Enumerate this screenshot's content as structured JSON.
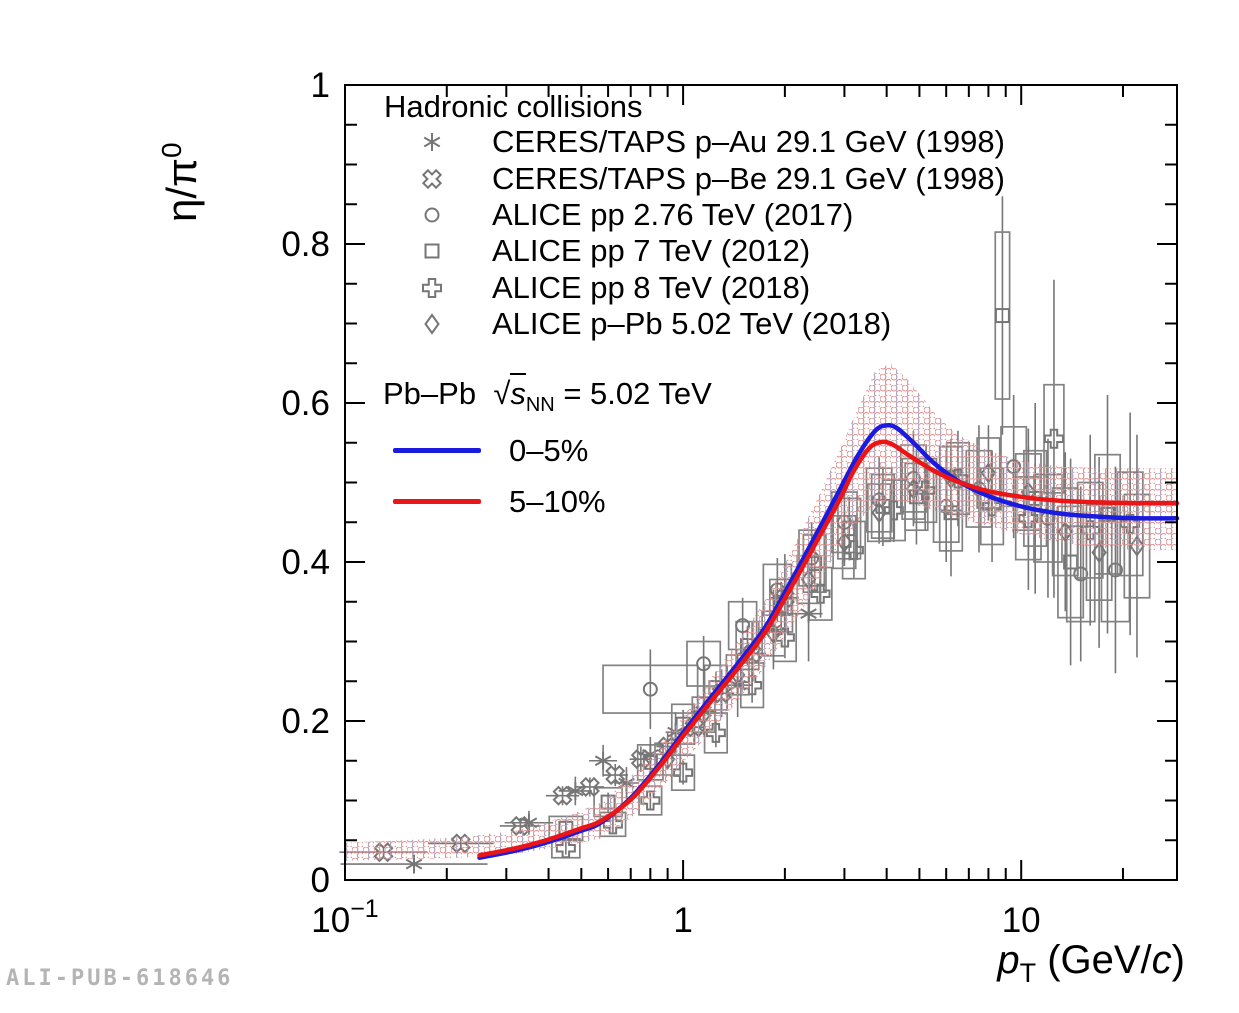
{
  "watermark": "ALI-PUB-618646",
  "colors": {
    "curve_0_5": "#1b1be0",
    "curve_5_10": "#ea1517",
    "marker_grey": "#767676",
    "box_grey": "#828282",
    "band_hatch_red": "#e09090",
    "band_hatch_blue": "#9aa2c4",
    "watermark_grey": "#b4b4b4"
  },
  "axes": {
    "x": {
      "title": {
        "p": "p",
        "sub": "T",
        "unit_prefix": " (GeV/",
        "unit_c": "c",
        "unit_suffix": ")"
      },
      "scale": "log",
      "range": [
        0.1,
        28.9
      ],
      "major_ticks": [
        {
          "v": 0.1,
          "base": "10",
          "exp": "−1"
        },
        {
          "v": 1,
          "base": "1",
          "exp": ""
        },
        {
          "v": 10,
          "base": "10",
          "exp": ""
        }
      ]
    },
    "y": {
      "title": {
        "base": "η/π",
        "sup": "0"
      },
      "scale": "linear",
      "range": [
        0,
        1
      ],
      "major_ticks": [
        {
          "v": 0,
          "label": "0"
        },
        {
          "v": 0.2,
          "label": "0.2"
        },
        {
          "v": 0.4,
          "label": "0.4"
        },
        {
          "v": 0.6,
          "label": "0.6"
        },
        {
          "v": 0.8,
          "label": "0.8"
        },
        {
          "v": 1,
          "label": "1"
        }
      ],
      "minor_step": 0.05
    }
  },
  "legend_hadronic": {
    "title": "Hadronic collisions",
    "entries": [
      {
        "marker": "asterisk",
        "label": "CERES/TAPS p–Au 29.1 GeV (1998)"
      },
      {
        "marker": "xcross",
        "label": "CERES/TAPS p–Be 29.1 GeV (1998)"
      },
      {
        "marker": "circle",
        "label": "ALICE pp 2.76 TeV (2017)"
      },
      {
        "marker": "square",
        "label": "ALICE pp 7 TeV (2012)"
      },
      {
        "marker": "pluscross",
        "label": "ALICE pp 8 TeV (2018)"
      },
      {
        "marker": "diamond",
        "label": "ALICE p–Pb 5.02 TeV (2018)"
      }
    ]
  },
  "legend_model": {
    "system": "Pb–Pb",
    "sqrt_symbol": "√",
    "sqrt_arg": "s",
    "subscript": "NN",
    "suffix": " = 5.02 TeV",
    "entries": [
      {
        "color": "#1b1be0",
        "label": "0–5%"
      },
      {
        "color": "#ea1517",
        "label": "5–10%"
      }
    ]
  },
  "chart_data": {
    "type": "scatter",
    "title": "",
    "xlabel": "pT (GeV/c)",
    "ylabel": "eta/pi0",
    "xlim": [
      0.1,
      28.9
    ],
    "ylim": [
      0,
      1
    ],
    "x_scale": "log",
    "grid": false,
    "legend_position": "upper-left",
    "point_format": [
      "pT",
      "value",
      "stat_err",
      "xbar_factor",
      "box_x_factor",
      "box_y_half"
    ],
    "data_series": [
      {
        "name": "ALICE pp 7 TeV (2012)",
        "marker": "square",
        "points": [
          [
            0.45,
            0.065,
            0.01,
            null,
            1.12,
            0.015
          ],
          [
            0.6,
            0.098,
            0.012,
            null,
            1.1,
            0.018
          ],
          [
            0.8,
            0.148,
            0.015,
            null,
            1.09,
            0.022
          ],
          [
            1.0,
            0.196,
            0.018,
            null,
            1.08,
            0.025
          ],
          [
            1.25,
            0.242,
            0.02,
            null,
            1.08,
            0.028
          ],
          [
            1.55,
            0.295,
            0.025,
            null,
            1.08,
            0.03
          ],
          [
            1.95,
            0.345,
            0.03,
            null,
            1.08,
            0.033
          ],
          [
            2.45,
            0.398,
            0.035,
            null,
            1.08,
            0.036
          ],
          [
            3.1,
            0.442,
            0.04,
            null,
            1.08,
            0.038
          ],
          [
            3.9,
            0.47,
            0.05,
            null,
            1.08,
            0.04
          ],
          [
            4.9,
            0.482,
            0.06,
            null,
            1.08,
            0.042
          ],
          [
            6.2,
            0.462,
            0.08,
            null,
            1.08,
            0.048
          ],
          [
            8.8,
            0.71,
            0.15,
            null,
            1.05,
            0.105
          ],
          [
            11.0,
            0.48,
            0.12,
            null,
            1.08,
            0.06
          ],
          [
            14.0,
            0.4,
            0.13,
            null,
            1.09,
            0.07
          ],
          [
            18.0,
            0.46,
            0.15,
            null,
            1.09,
            0.075
          ]
        ]
      },
      {
        "name": "ALICE pp 2.76 TeV (2017)",
        "marker": "circle",
        "points": [
          [
            0.8,
            0.24,
            0.05,
            null,
            1.38,
            0.03
          ],
          [
            1.15,
            0.272,
            0.035,
            null,
            1.12,
            0.028
          ],
          [
            1.5,
            0.32,
            0.035,
            null,
            1.1,
            0.03
          ],
          [
            1.9,
            0.365,
            0.04,
            null,
            1.1,
            0.032
          ],
          [
            2.4,
            0.405,
            0.045,
            null,
            1.09,
            0.035
          ],
          [
            3.0,
            0.45,
            0.05,
            null,
            1.09,
            0.038
          ],
          [
            3.8,
            0.478,
            0.055,
            null,
            1.09,
            0.04
          ],
          [
            4.8,
            0.505,
            0.06,
            null,
            1.09,
            0.042
          ],
          [
            6.0,
            0.47,
            0.07,
            null,
            1.09,
            0.045
          ],
          [
            7.5,
            0.492,
            0.08,
            null,
            1.09,
            0.048
          ],
          [
            9.5,
            0.52,
            0.09,
            null,
            1.09,
            0.05
          ],
          [
            12.0,
            0.455,
            0.1,
            null,
            1.1,
            0.055
          ],
          [
            15.0,
            0.385,
            0.11,
            null,
            1.1,
            0.06
          ],
          [
            19.0,
            0.39,
            0.13,
            null,
            1.1,
            0.065
          ]
        ]
      },
      {
        "name": "ALICE pp 8 TeV (2018)",
        "marker": "pluscross",
        "points": [
          [
            0.45,
            0.04,
            0.008,
            null,
            1.1,
            0.012
          ],
          [
            0.62,
            0.07,
            0.01,
            null,
            1.09,
            0.015
          ],
          [
            0.8,
            0.1,
            0.012,
            null,
            1.08,
            0.018
          ],
          [
            1.0,
            0.135,
            0.015,
            null,
            1.08,
            0.022
          ],
          [
            1.25,
            0.185,
            0.018,
            null,
            1.08,
            0.025
          ],
          [
            1.6,
            0.245,
            0.022,
            null,
            1.08,
            0.028
          ],
          [
            2.0,
            0.305,
            0.026,
            null,
            1.08,
            0.03
          ],
          [
            2.55,
            0.36,
            0.03,
            null,
            1.08,
            0.033
          ],
          [
            3.2,
            0.415,
            0.035,
            null,
            1.08,
            0.036
          ],
          [
            4.2,
            0.465,
            0.04,
            null,
            1.08,
            0.038
          ],
          [
            5.2,
            0.49,
            0.05,
            null,
            1.08,
            0.04
          ],
          [
            6.5,
            0.505,
            0.06,
            null,
            1.08,
            0.045
          ],
          [
            8.2,
            0.47,
            0.07,
            null,
            1.08,
            0.048
          ],
          [
            10.5,
            0.455,
            0.09,
            null,
            1.09,
            0.052
          ],
          [
            12.5,
            0.555,
            0.2,
            null,
            1.07,
            0.068
          ],
          [
            16.0,
            0.44,
            0.12,
            null,
            1.09,
            0.06
          ],
          [
            21.0,
            0.448,
            0.14,
            null,
            1.09,
            0.065
          ]
        ]
      },
      {
        "name": "ALICE p–Pb 5.02 TeV (2018)",
        "marker": "diamond",
        "points": [
          [
            0.9,
            0.152,
            0.012,
            null,
            1.09,
            0.02
          ],
          [
            1.15,
            0.208,
            0.015,
            null,
            1.08,
            0.022
          ],
          [
            1.45,
            0.258,
            0.018,
            null,
            1.08,
            0.025
          ],
          [
            1.85,
            0.31,
            0.022,
            null,
            1.08,
            0.028
          ],
          [
            2.35,
            0.378,
            0.026,
            null,
            1.08,
            0.03
          ],
          [
            3.0,
            0.425,
            0.03,
            null,
            1.08,
            0.033
          ],
          [
            3.8,
            0.462,
            0.035,
            null,
            1.08,
            0.036
          ],
          [
            4.8,
            0.492,
            0.04,
            null,
            1.08,
            0.038
          ],
          [
            6.2,
            0.505,
            0.05,
            null,
            1.08,
            0.04
          ],
          [
            8.0,
            0.512,
            0.06,
            null,
            1.08,
            0.044
          ],
          [
            10.5,
            0.488,
            0.08,
            null,
            1.09,
            0.048
          ],
          [
            13.5,
            0.438,
            0.1,
            null,
            1.09,
            0.055
          ],
          [
            17.0,
            0.412,
            0.12,
            null,
            1.09,
            0.06
          ],
          [
            22.0,
            0.42,
            0.14,
            null,
            1.09,
            0.065
          ]
        ]
      },
      {
        "name": "CERES/TAPS p–Au 29.1 GeV (1998)",
        "marker": "asterisk",
        "points": [
          [
            0.16,
            0.02,
            0.012,
            1.65,
            null,
            null
          ],
          [
            0.35,
            0.072,
            0.015,
            1.18,
            null,
            null
          ],
          [
            0.48,
            0.112,
            0.018,
            1.12,
            null,
            null
          ],
          [
            0.58,
            0.15,
            0.02,
            1.1,
            null,
            null
          ],
          [
            0.68,
            0.122,
            0.02,
            1.09,
            null,
            null
          ],
          [
            0.8,
            0.158,
            0.022,
            1.08,
            null,
            null
          ],
          [
            0.95,
            0.186,
            0.025,
            1.07,
            null,
            null
          ],
          [
            1.15,
            0.212,
            0.03,
            1.09,
            null,
            null
          ],
          [
            1.45,
            0.245,
            0.04,
            1.1,
            null,
            null
          ],
          [
            1.85,
            0.315,
            0.05,
            1.1,
            null,
            null
          ],
          [
            2.35,
            0.335,
            0.06,
            1.1,
            null,
            null
          ]
        ]
      },
      {
        "name": "CERES/TAPS p–Be 29.1 GeV (1998)",
        "marker": "xcross",
        "points": [
          [
            0.13,
            0.035,
            0.008,
            1.35,
            null,
            null
          ],
          [
            0.22,
            0.046,
            0.008,
            1.25,
            null,
            null
          ],
          [
            0.33,
            0.068,
            0.01,
            1.15,
            null,
            null
          ],
          [
            0.44,
            0.106,
            0.012,
            1.12,
            null,
            null
          ],
          [
            0.53,
            0.117,
            0.012,
            1.1,
            null,
            null
          ],
          [
            0.63,
            0.132,
            0.014,
            1.09,
            null,
            null
          ],
          [
            0.75,
            0.152,
            0.016,
            1.08,
            null,
            null
          ],
          [
            0.9,
            0.168,
            0.018,
            1.08,
            null,
            null
          ],
          [
            1.08,
            0.192,
            0.022,
            1.08,
            null,
            null
          ],
          [
            1.3,
            0.235,
            0.03,
            1.09,
            null,
            null
          ],
          [
            1.6,
            0.285,
            0.04,
            1.1,
            null,
            null
          ],
          [
            2.0,
            0.355,
            0.055,
            1.1,
            null,
            null
          ]
        ]
      }
    ],
    "model_curves": [
      {
        "name": "Pb–Pb 0–5%",
        "color": "#1b1be0",
        "points": [
          [
            0.25,
            0.028
          ],
          [
            0.32,
            0.037
          ],
          [
            0.4,
            0.048
          ],
          [
            0.5,
            0.062
          ],
          [
            0.57,
            0.072
          ],
          [
            0.7,
            0.103
          ],
          [
            0.85,
            0.145
          ],
          [
            1.0,
            0.185
          ],
          [
            1.2,
            0.228
          ],
          [
            1.45,
            0.272
          ],
          [
            1.75,
            0.318
          ],
          [
            2.1,
            0.378
          ],
          [
            2.5,
            0.438
          ],
          [
            2.9,
            0.49
          ],
          [
            3.3,
            0.535
          ],
          [
            3.7,
            0.565
          ],
          [
            4.0,
            0.572
          ],
          [
            4.3,
            0.568
          ],
          [
            4.8,
            0.55
          ],
          [
            5.5,
            0.525
          ],
          [
            6.5,
            0.502
          ],
          [
            8.0,
            0.483
          ],
          [
            10.0,
            0.47
          ],
          [
            13.0,
            0.461
          ],
          [
            17.0,
            0.457
          ],
          [
            22.0,
            0.455
          ],
          [
            28.9,
            0.455
          ]
        ]
      },
      {
        "name": "Pb–Pb 5–10%",
        "color": "#ea1517",
        "points": [
          [
            0.25,
            0.031
          ],
          [
            0.32,
            0.04
          ],
          [
            0.4,
            0.051
          ],
          [
            0.5,
            0.065
          ],
          [
            0.57,
            0.074
          ],
          [
            0.7,
            0.101
          ],
          [
            0.85,
            0.142
          ],
          [
            1.0,
            0.181
          ],
          [
            1.2,
            0.223
          ],
          [
            1.45,
            0.266
          ],
          [
            1.75,
            0.312
          ],
          [
            2.1,
            0.37
          ],
          [
            2.5,
            0.428
          ],
          [
            2.9,
            0.478
          ],
          [
            3.2,
            0.515
          ],
          [
            3.55,
            0.543
          ],
          [
            3.85,
            0.551
          ],
          [
            4.15,
            0.548
          ],
          [
            4.7,
            0.533
          ],
          [
            5.5,
            0.515
          ],
          [
            6.5,
            0.501
          ],
          [
            8.0,
            0.489
          ],
          [
            10.0,
            0.482
          ],
          [
            13.0,
            0.477
          ],
          [
            17.0,
            0.475
          ],
          [
            22.0,
            0.474
          ],
          [
            28.9,
            0.474
          ]
        ]
      }
    ],
    "uncertainty_band": {
      "x": [
        0.1,
        0.15,
        0.22,
        0.32,
        0.45,
        0.57,
        0.7,
        0.85,
        1.0,
        1.2,
        1.45,
        1.75,
        2.1,
        2.5,
        2.9,
        3.3,
        3.7,
        4.1,
        4.6,
        5.5,
        6.5,
        8.0,
        10.0,
        13.0,
        17.0,
        22.0,
        28.9
      ],
      "top": [
        0.047,
        0.05,
        0.054,
        0.062,
        0.08,
        0.097,
        0.13,
        0.168,
        0.205,
        0.252,
        0.3,
        0.352,
        0.415,
        0.48,
        0.54,
        0.595,
        0.64,
        0.65,
        0.63,
        0.59,
        0.56,
        0.54,
        0.527,
        0.52,
        0.518,
        0.518,
        0.518
      ],
      "bottom": [
        0.024,
        0.026,
        0.028,
        0.033,
        0.043,
        0.052,
        0.078,
        0.112,
        0.148,
        0.185,
        0.225,
        0.268,
        0.32,
        0.372,
        0.418,
        0.452,
        0.472,
        0.478,
        0.475,
        0.465,
        0.455,
        0.445,
        0.435,
        0.425,
        0.418,
        0.415,
        0.415
      ]
    }
  }
}
